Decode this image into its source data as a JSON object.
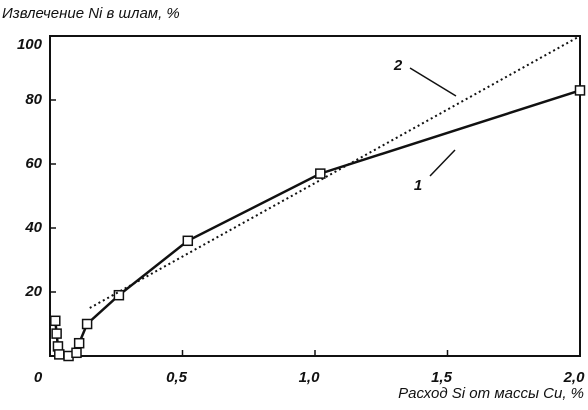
{
  "chart_data": {
    "type": "line",
    "y_label": "Извлечение Ni в шлам, %",
    "x_label": "Расход Si от массы Cu, %",
    "series": [
      {
        "name": "1",
        "color": "#111111",
        "style": "solid",
        "markers": true,
        "x": [
          0.02,
          0.025,
          0.03,
          0.035,
          0.07,
          0.1,
          0.11,
          0.14,
          0.26,
          0.52,
          1.02,
          2.0
        ],
        "values": [
          11,
          7,
          3,
          0.5,
          0,
          1,
          4,
          10,
          19,
          36,
          57,
          83
        ]
      },
      {
        "name": "2",
        "color": "#111111",
        "style": "dotted",
        "markers": false,
        "x": [
          0.15,
          2.0
        ],
        "values": [
          15,
          100
        ]
      }
    ],
    "xlim": [
      0,
      2.0
    ],
    "xticks": [
      0,
      {
        "value": 0.5,
        "label": "0,5"
      },
      {
        "value": 1.0,
        "label": "1,0"
      },
      {
        "value": 1.5,
        "label": "1,5"
      },
      {
        "value": 2.0,
        "label": "2,0"
      }
    ],
    "ylim": [
      0,
      100
    ],
    "yticks": [
      20,
      40,
      60,
      80,
      100
    ],
    "grid": false
  }
}
